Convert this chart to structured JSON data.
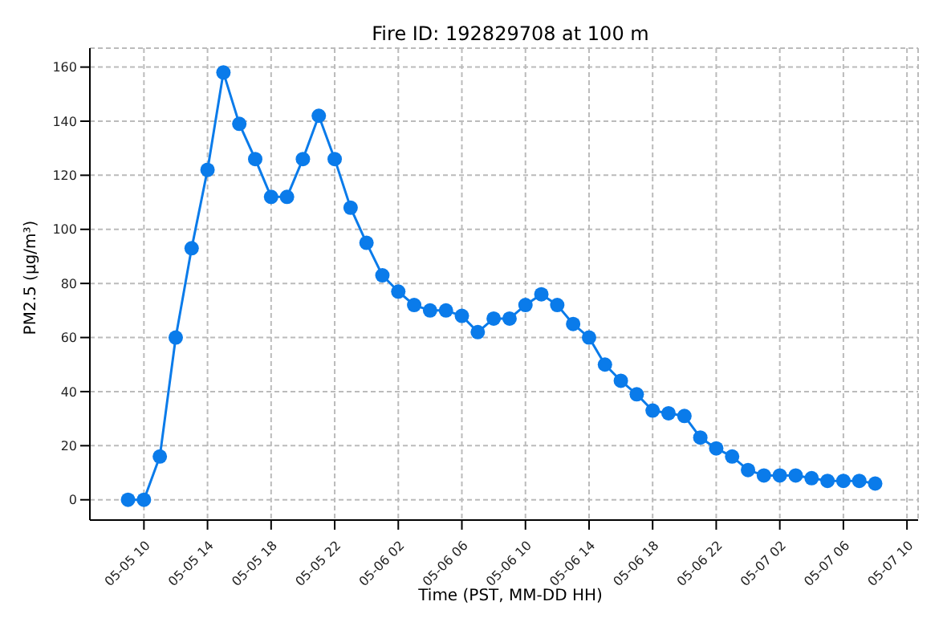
{
  "chart_data": {
    "type": "line",
    "title": "Fire ID: 192829708 at 100 m",
    "xlabel": "Time (PST, MM-DD HH)",
    "ylabel": "PM2.5 (μg/m³)",
    "x": [
      "--05-05T09:00",
      "--05-05T10:00",
      "--05-05T11:00",
      "--05-05T12:00",
      "--05-05T13:00",
      "--05-05T14:00",
      "--05-05T15:00",
      "--05-05T16:00",
      "--05-05T17:00",
      "--05-05T18:00",
      "--05-05T19:00",
      "--05-05T20:00",
      "--05-05T21:00",
      "--05-05T22:00",
      "--05-05T23:00",
      "--05-06T00:00",
      "--05-06T01:00",
      "--05-06T02:00",
      "--05-06T03:00",
      "--05-06T04:00",
      "--05-06T05:00",
      "--05-06T06:00",
      "--05-06T07:00",
      "--05-06T08:00",
      "--05-06T09:00",
      "--05-06T10:00",
      "--05-06T11:00",
      "--05-06T12:00",
      "--05-06T13:00",
      "--05-06T14:00",
      "--05-06T15:00",
      "--05-06T16:00",
      "--05-06T17:00",
      "--05-06T18:00",
      "--05-06T19:00",
      "--05-06T20:00",
      "--05-06T21:00",
      "--05-06T22:00",
      "--05-06T23:00",
      "--05-07T00:00",
      "--05-07T01:00",
      "--05-07T02:00",
      "--05-07T03:00",
      "--05-07T04:00",
      "--05-07T05:00",
      "--05-07T06:00",
      "--05-07T07:00",
      "--05-07T08:00"
    ],
    "series": [
      {
        "color": "#0a7bea",
        "values": [
          0,
          0,
          16,
          60,
          93,
          122,
          158,
          139,
          126,
          112,
          112,
          126,
          142,
          126,
          108,
          95,
          83,
          77,
          72,
          70,
          70,
          68,
          62,
          67,
          67,
          72,
          76,
          72,
          65,
          60,
          50,
          44,
          39,
          33,
          32,
          31,
          23,
          19,
          16,
          11,
          9,
          9,
          9,
          8,
          7,
          7,
          7,
          6
        ]
      }
    ],
    "xlim": [
      "--05-05T06:36",
      "--05-07T10:42"
    ],
    "xticks": [
      {
        "value": "--05-05T10:00",
        "label": "05-05 10"
      },
      {
        "value": "--05-05T14:00",
        "label": "05-05 14"
      },
      {
        "value": "--05-05T18:00",
        "label": "05-05 18"
      },
      {
        "value": "--05-05T22:00",
        "label": "05-05 22"
      },
      {
        "value": "--05-06T02:00",
        "label": "05-06 02"
      },
      {
        "value": "--05-06T06:00",
        "label": "05-06 06"
      },
      {
        "value": "--05-06T10:00",
        "label": "05-06 10"
      },
      {
        "value": "--05-06T14:00",
        "label": "05-06 14"
      },
      {
        "value": "--05-06T18:00",
        "label": "05-06 18"
      },
      {
        "value": "--05-06T22:00",
        "label": "05-06 22"
      },
      {
        "value": "--05-07T02:00",
        "label": "05-07 02"
      },
      {
        "value": "--05-07T06:00",
        "label": "05-07 06"
      },
      {
        "value": "--05-07T10:00",
        "label": "05-07 10"
      }
    ],
    "ylim": [
      -7.5,
      167
    ],
    "yticks": [
      0,
      20,
      40,
      60,
      80,
      100,
      120,
      140,
      160
    ],
    "grid": true,
    "marker": "circle",
    "line_style": "solid"
  }
}
